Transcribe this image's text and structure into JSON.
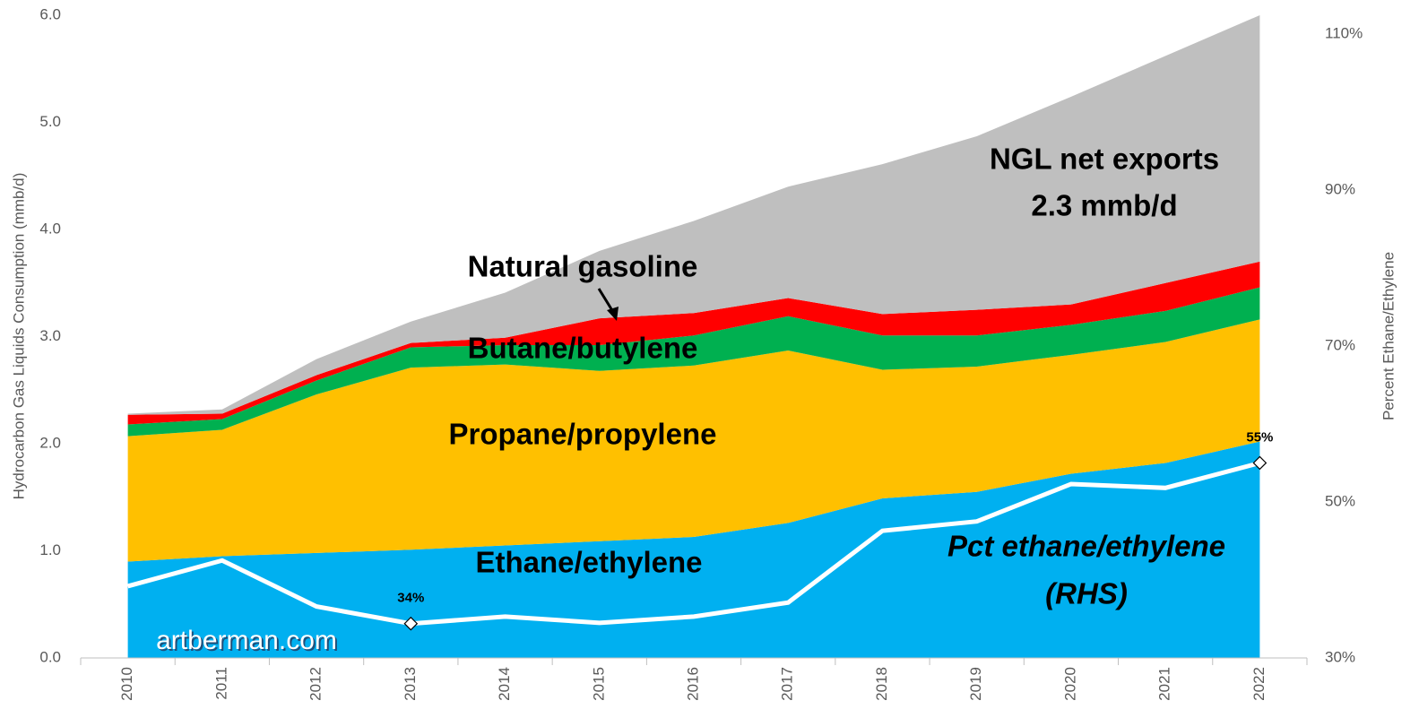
{
  "chart_data": {
    "type": "stacked_area",
    "categories": [
      "2010",
      "2011",
      "2012",
      "2013",
      "2014",
      "2015",
      "2016",
      "2017",
      "2018",
      "2019",
      "2020",
      "2021",
      "2022"
    ],
    "ylabel": "Hydrocarbon Gas Liquids Consumption (mmb/d)",
    "y2label": "Percent Ethane/Ethylene",
    "ylim": [
      0,
      6
    ],
    "yticks": [
      {
        "value": 0,
        "label": "0.0"
      },
      {
        "value": 1,
        "label": "1.0"
      },
      {
        "value": 2,
        "label": "2.0"
      },
      {
        "value": 3,
        "label": "3.0"
      },
      {
        "value": 4,
        "label": "4.0"
      },
      {
        "value": 5,
        "label": "5.0"
      },
      {
        "value": 6,
        "label": "6.0"
      }
    ],
    "y2lim": [
      30,
      112.4
    ],
    "y2ticks": [
      {
        "value": 30,
        "label": "30%"
      },
      {
        "value": 50,
        "label": "50%"
      },
      {
        "value": 70,
        "label": "70%"
      },
      {
        "value": 90,
        "label": "90%"
      },
      {
        "value": 110,
        "label": "110%"
      }
    ],
    "series": [
      {
        "name": "Ethane/ethylene",
        "color": "#00b0f0",
        "values": [
          0.9,
          0.95,
          0.98,
          1.01,
          1.05,
          1.09,
          1.13,
          1.26,
          1.49,
          1.55,
          1.72,
          1.82,
          2.02
        ]
      },
      {
        "name": "Propane/propylene",
        "color": "#ffc000",
        "values": [
          1.17,
          1.18,
          1.48,
          1.7,
          1.69,
          1.59,
          1.6,
          1.61,
          1.2,
          1.17,
          1.11,
          1.13,
          1.14
        ]
      },
      {
        "name": "Butane/butylene",
        "color": "#00b050",
        "values": [
          0.11,
          0.1,
          0.13,
          0.19,
          0.18,
          0.24,
          0.28,
          0.32,
          0.32,
          0.29,
          0.28,
          0.29,
          0.3
        ]
      },
      {
        "name": "Natural gasoline",
        "color": "#ff0000",
        "values": [
          0.09,
          0.05,
          0.05,
          0.04,
          0.07,
          0.25,
          0.21,
          0.17,
          0.2,
          0.24,
          0.19,
          0.26,
          0.24
        ]
      },
      {
        "name": "NGL net exports",
        "color": "#bfbfbf",
        "values": [
          0.01,
          0.04,
          0.15,
          0.2,
          0.42,
          0.63,
          0.86,
          1.04,
          1.4,
          1.62,
          1.94,
          2.12,
          2.3
        ]
      },
      {
        "name": "Pct ethane/ethylene",
        "color": "#ffffff",
        "axis": "y2",
        "values": [
          39.2,
          42.5,
          36.6,
          34.4,
          35.3,
          34.5,
          35.3,
          37.1,
          46.3,
          47.5,
          52.3,
          51.8,
          55.0
        ],
        "value_labels": [
          null,
          null,
          null,
          "34%",
          null,
          null,
          null,
          null,
          null,
          null,
          null,
          null,
          "55%"
        ]
      }
    ],
    "annotations": [
      "2.3 mmb/d",
      "(RHS)",
      "artberman.com"
    ]
  }
}
